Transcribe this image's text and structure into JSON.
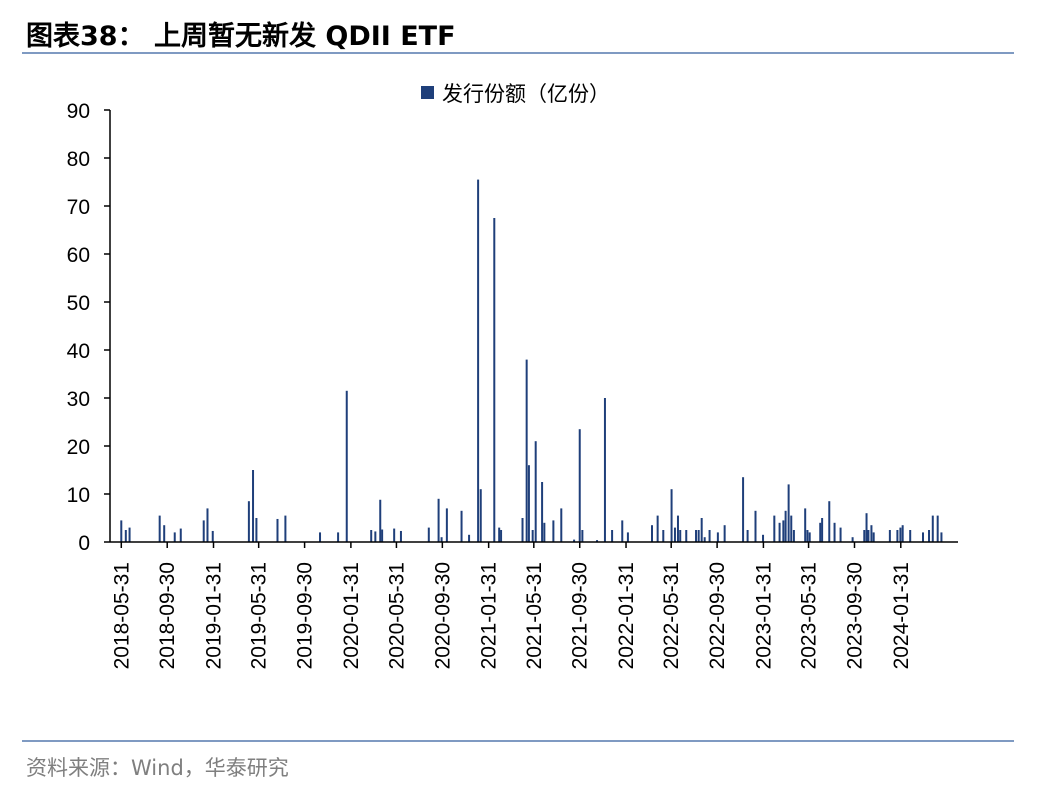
{
  "header": {
    "figure_title": "图表38：  上周暂无新发 QDII ETF"
  },
  "footer": {
    "source": "资料来源：Wind，华泰研究"
  },
  "colors": {
    "bar": "#1f3f7a",
    "rule": "#7f9ac2",
    "axis": "#000000"
  },
  "chart_data": {
    "type": "bar",
    "title": "",
    "xlabel": "",
    "ylabel": "",
    "ylim": [
      0,
      90
    ],
    "yticks": [
      0,
      10,
      20,
      30,
      40,
      50,
      60,
      70,
      80,
      90
    ],
    "xlim": [
      "2018-05-01",
      "2024-07-01"
    ],
    "xticks": [
      "2018-05-31",
      "2018-09-30",
      "2019-01-31",
      "2019-05-31",
      "2019-09-30",
      "2020-01-31",
      "2020-05-31",
      "2020-09-30",
      "2021-01-31",
      "2021-05-31",
      "2021-09-30",
      "2022-01-31",
      "2022-05-31",
      "2022-09-30",
      "2023-01-31",
      "2023-05-31",
      "2023-09-30",
      "2024-01-31"
    ],
    "grid": false,
    "legend": {
      "position": "top-center"
    },
    "series": [
      {
        "name": "发行份额（亿份）",
        "points": [
          [
            "2018-05-31",
            4.5
          ],
          [
            "2018-06-12",
            2.5
          ],
          [
            "2018-06-22",
            3.0
          ],
          [
            "2018-09-10",
            5.5
          ],
          [
            "2018-09-22",
            3.5
          ],
          [
            "2018-10-20",
            2.0
          ],
          [
            "2018-11-05",
            2.8
          ],
          [
            "2019-01-05",
            4.5
          ],
          [
            "2019-01-15",
            7.0
          ],
          [
            "2019-01-29",
            2.3
          ],
          [
            "2019-05-05",
            8.5
          ],
          [
            "2019-05-16",
            15.0
          ],
          [
            "2019-05-25",
            5.0
          ],
          [
            "2019-07-20",
            4.8
          ],
          [
            "2019-08-10",
            5.5
          ],
          [
            "2019-11-10",
            2.0
          ],
          [
            "2019-12-28",
            2.0
          ],
          [
            "2020-01-20",
            31.5
          ],
          [
            "2020-03-25",
            2.5
          ],
          [
            "2020-04-05",
            2.2
          ],
          [
            "2020-04-18",
            8.8
          ],
          [
            "2020-04-23",
            2.6
          ],
          [
            "2020-05-25",
            2.8
          ],
          [
            "2020-06-12",
            2.3
          ],
          [
            "2020-08-25",
            3.0
          ],
          [
            "2020-09-20",
            9.0
          ],
          [
            "2020-09-28",
            1.0
          ],
          [
            "2020-10-12",
            7.0
          ],
          [
            "2020-11-20",
            6.5
          ],
          [
            "2020-12-10",
            1.5
          ],
          [
            "2021-01-03",
            75.5
          ],
          [
            "2021-01-10",
            11.0
          ],
          [
            "2021-02-15",
            67.5
          ],
          [
            "2021-02-28",
            3.0
          ],
          [
            "2021-03-05",
            2.5
          ],
          [
            "2021-05-01",
            5.0
          ],
          [
            "2021-05-12",
            38.0
          ],
          [
            "2021-05-18",
            16.0
          ],
          [
            "2021-05-28",
            2.5
          ],
          [
            "2021-06-05",
            21.0
          ],
          [
            "2021-06-22",
            12.5
          ],
          [
            "2021-06-28",
            4.0
          ],
          [
            "2021-07-22",
            4.5
          ],
          [
            "2021-08-12",
            7.0
          ],
          [
            "2021-09-15",
            0.5
          ],
          [
            "2021-09-30",
            23.5
          ],
          [
            "2021-10-07",
            2.5
          ],
          [
            "2021-11-15",
            0.4
          ],
          [
            "2021-12-06",
            30.0
          ],
          [
            "2021-12-25",
            2.5
          ],
          [
            "2022-01-21",
            4.5
          ],
          [
            "2022-02-05",
            2.0
          ],
          [
            "2022-04-10",
            3.5
          ],
          [
            "2022-04-25",
            5.5
          ],
          [
            "2022-05-10",
            2.5
          ],
          [
            "2022-06-01",
            11.0
          ],
          [
            "2022-06-10",
            3.0
          ],
          [
            "2022-06-18",
            5.5
          ],
          [
            "2022-06-24",
            2.5
          ],
          [
            "2022-07-10",
            2.5
          ],
          [
            "2022-08-05",
            2.5
          ],
          [
            "2022-08-12",
            2.5
          ],
          [
            "2022-08-20",
            5.0
          ],
          [
            "2022-08-28",
            1.0
          ],
          [
            "2022-09-10",
            2.5
          ],
          [
            "2022-10-02",
            2.0
          ],
          [
            "2022-10-20",
            3.5
          ],
          [
            "2022-12-08",
            13.5
          ],
          [
            "2022-12-20",
            2.5
          ],
          [
            "2023-01-10",
            6.5
          ],
          [
            "2023-01-30",
            1.5
          ],
          [
            "2023-03-01",
            5.5
          ],
          [
            "2023-03-15",
            4.0
          ],
          [
            "2023-03-25",
            4.5
          ],
          [
            "2023-03-31",
            6.5
          ],
          [
            "2023-04-08",
            12.0
          ],
          [
            "2023-04-15",
            5.5
          ],
          [
            "2023-04-22",
            2.5
          ],
          [
            "2023-05-22",
            7.0
          ],
          [
            "2023-05-28",
            2.5
          ],
          [
            "2023-06-03",
            2.0
          ],
          [
            "2023-07-01",
            4.0
          ],
          [
            "2023-07-06",
            5.0
          ],
          [
            "2023-07-25",
            8.5
          ],
          [
            "2023-08-08",
            4.0
          ],
          [
            "2023-08-24",
            3.0
          ],
          [
            "2023-09-25",
            1.0
          ],
          [
            "2023-10-26",
            2.5
          ],
          [
            "2023-11-01",
            6.0
          ],
          [
            "2023-11-06",
            2.5
          ],
          [
            "2023-11-14",
            3.5
          ],
          [
            "2023-11-20",
            2.0
          ],
          [
            "2024-01-02",
            2.5
          ],
          [
            "2024-01-22",
            2.5
          ],
          [
            "2024-01-30",
            3.0
          ],
          [
            "2024-02-05",
            3.5
          ],
          [
            "2024-02-25",
            2.5
          ],
          [
            "2024-03-30",
            2.0
          ],
          [
            "2024-04-15",
            2.5
          ],
          [
            "2024-04-25",
            5.5
          ],
          [
            "2024-05-08",
            5.5
          ],
          [
            "2024-05-18",
            2.0
          ]
        ]
      }
    ]
  }
}
